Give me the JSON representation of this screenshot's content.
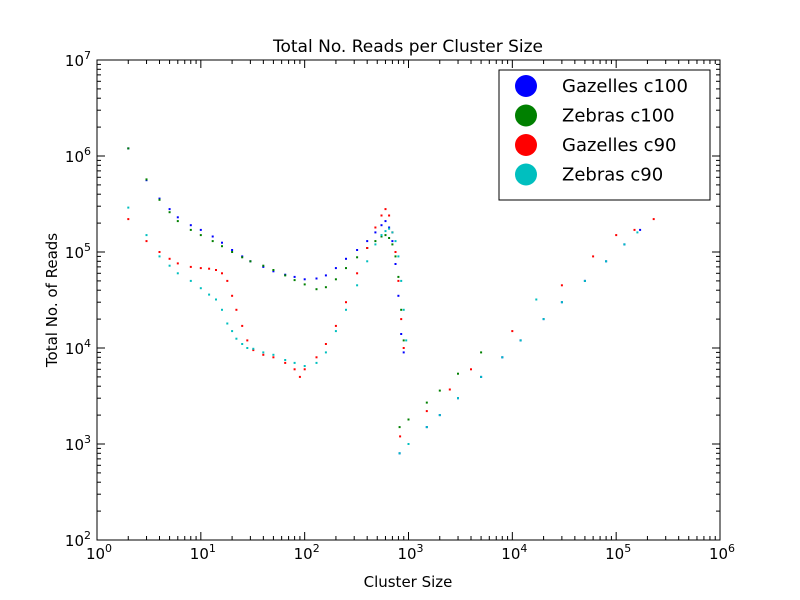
{
  "chart_data": {
    "type": "scatter",
    "title": "Total No. Reads per Cluster Size",
    "xlabel": "Cluster Size",
    "ylabel": "Total No. of Reads",
    "xscale": "log",
    "yscale": "log",
    "xlim": [
      1,
      1000000
    ],
    "ylim": [
      100,
      10000000
    ],
    "legend_position": "top-right",
    "grid": false,
    "x_ticks": [
      {
        "base": "10",
        "exp": "0",
        "value": 1
      },
      {
        "base": "10",
        "exp": "1",
        "value": 10
      },
      {
        "base": "10",
        "exp": "2",
        "value": 100
      },
      {
        "base": "10",
        "exp": "3",
        "value": 1000
      },
      {
        "base": "10",
        "exp": "4",
        "value": 10000
      },
      {
        "base": "10",
        "exp": "5",
        "value": 100000
      },
      {
        "base": "10",
        "exp": "6",
        "value": 1000000
      }
    ],
    "y_ticks": [
      {
        "base": "10",
        "exp": "2",
        "value": 100
      },
      {
        "base": "10",
        "exp": "3",
        "value": 1000
      },
      {
        "base": "10",
        "exp": "4",
        "value": 10000
      },
      {
        "base": "10",
        "exp": "5",
        "value": 100000
      },
      {
        "base": "10",
        "exp": "6",
        "value": 1000000
      },
      {
        "base": "10",
        "exp": "7",
        "value": 10000000
      }
    ],
    "series": [
      {
        "name": "Gazelles c100",
        "color": "#0000ff",
        "points": [
          [
            2,
            1200000
          ],
          [
            3,
            560000
          ],
          [
            4,
            360000
          ],
          [
            5,
            280000
          ],
          [
            6,
            230000
          ],
          [
            8,
            190000
          ],
          [
            10,
            170000
          ],
          [
            13,
            145000
          ],
          [
            16,
            125000
          ],
          [
            20,
            105000
          ],
          [
            25,
            90000
          ],
          [
            30,
            80000
          ],
          [
            40,
            70000
          ],
          [
            50,
            63000
          ],
          [
            65,
            58000
          ],
          [
            80,
            55000
          ],
          [
            100,
            52000
          ],
          [
            130,
            53000
          ],
          [
            160,
            57000
          ],
          [
            200,
            68000
          ],
          [
            250,
            85000
          ],
          [
            320,
            105000
          ],
          [
            400,
            130000
          ],
          [
            480,
            160000
          ],
          [
            550,
            190000
          ],
          [
            600,
            210000
          ],
          [
            650,
            180000
          ],
          [
            700,
            130000
          ],
          [
            750,
            75000
          ],
          [
            800,
            35000
          ],
          [
            850,
            14000
          ],
          [
            900,
            9000
          ],
          [
            820,
            800
          ],
          [
            1000,
            1000
          ],
          [
            1500,
            1500
          ],
          [
            2000,
            2000
          ],
          [
            3000,
            3000
          ],
          [
            5000,
            5000
          ],
          [
            8000,
            8000
          ],
          [
            12000,
            12000
          ],
          [
            20000,
            20000
          ],
          [
            30000,
            30000
          ],
          [
            50000,
            50000
          ],
          [
            80000,
            80000
          ],
          [
            120000,
            120000
          ],
          [
            170000,
            170000
          ]
        ]
      },
      {
        "name": "Zebras c100",
        "color": "#008000",
        "points": [
          [
            2,
            1200000
          ],
          [
            3,
            570000
          ],
          [
            4,
            350000
          ],
          [
            5,
            260000
          ],
          [
            6,
            210000
          ],
          [
            8,
            170000
          ],
          [
            10,
            150000
          ],
          [
            13,
            130000
          ],
          [
            16,
            115000
          ],
          [
            20,
            100000
          ],
          [
            25,
            88000
          ],
          [
            30,
            80000
          ],
          [
            40,
            72000
          ],
          [
            50,
            65000
          ],
          [
            65,
            57000
          ],
          [
            80,
            51000
          ],
          [
            100,
            46000
          ],
          [
            130,
            41000
          ],
          [
            160,
            43000
          ],
          [
            200,
            52000
          ],
          [
            250,
            68000
          ],
          [
            320,
            88000
          ],
          [
            400,
            110000
          ],
          [
            480,
            130000
          ],
          [
            550,
            145000
          ],
          [
            600,
            150000
          ],
          [
            650,
            140000
          ],
          [
            700,
            120000
          ],
          [
            750,
            90000
          ],
          [
            800,
            55000
          ],
          [
            850,
            25000
          ],
          [
            900,
            12000
          ],
          [
            820,
            1500
          ],
          [
            1000,
            1800
          ],
          [
            1500,
            2700
          ],
          [
            2000,
            3600
          ],
          [
            3000,
            5400
          ],
          [
            5000,
            9000
          ]
        ]
      },
      {
        "name": "Gazelles c90",
        "color": "#ff0000",
        "points": [
          [
            2,
            220000
          ],
          [
            3,
            130000
          ],
          [
            4,
            100000
          ],
          [
            5,
            85000
          ],
          [
            6,
            76000
          ],
          [
            8,
            70000
          ],
          [
            10,
            68000
          ],
          [
            12,
            67000
          ],
          [
            14,
            65000
          ],
          [
            16,
            60000
          ],
          [
            18,
            50000
          ],
          [
            20,
            35000
          ],
          [
            22,
            25000
          ],
          [
            25,
            17000
          ],
          [
            28,
            12000
          ],
          [
            32,
            9500
          ],
          [
            40,
            8500
          ],
          [
            50,
            8000
          ],
          [
            65,
            7000
          ],
          [
            80,
            6000
          ],
          [
            90,
            5000
          ],
          [
            100,
            6000
          ],
          [
            130,
            8000
          ],
          [
            160,
            11000
          ],
          [
            200,
            17000
          ],
          [
            250,
            30000
          ],
          [
            320,
            60000
          ],
          [
            400,
            110000
          ],
          [
            480,
            180000
          ],
          [
            550,
            240000
          ],
          [
            600,
            280000
          ],
          [
            650,
            240000
          ],
          [
            700,
            160000
          ],
          [
            750,
            100000
          ],
          [
            800,
            50000
          ],
          [
            850,
            20000
          ],
          [
            900,
            10000
          ],
          [
            830,
            1200
          ],
          [
            1500,
            2200
          ],
          [
            2500,
            3700
          ],
          [
            4000,
            6000
          ],
          [
            10000,
            15000
          ],
          [
            30000,
            45000
          ],
          [
            60000,
            90000
          ],
          [
            100000,
            150000
          ],
          [
            150000,
            170000
          ],
          [
            230000,
            220000
          ]
        ]
      },
      {
        "name": "Zebras c90",
        "color": "#00bfbf",
        "points": [
          [
            2,
            290000
          ],
          [
            3,
            150000
          ],
          [
            4,
            90000
          ],
          [
            5,
            72000
          ],
          [
            6,
            60000
          ],
          [
            8,
            50000
          ],
          [
            10,
            42000
          ],
          [
            12,
            36000
          ],
          [
            14,
            32000
          ],
          [
            16,
            25000
          ],
          [
            18,
            18000
          ],
          [
            20,
            15000
          ],
          [
            22,
            12500
          ],
          [
            25,
            11000
          ],
          [
            28,
            10000
          ],
          [
            32,
            9800
          ],
          [
            40,
            9000
          ],
          [
            50,
            8500
          ],
          [
            65,
            7500
          ],
          [
            80,
            7000
          ],
          [
            100,
            6500
          ],
          [
            130,
            7000
          ],
          [
            160,
            9000
          ],
          [
            200,
            15000
          ],
          [
            250,
            25000
          ],
          [
            320,
            45000
          ],
          [
            400,
            80000
          ],
          [
            480,
            120000
          ],
          [
            550,
            150000
          ],
          [
            600,
            165000
          ],
          [
            650,
            175000
          ],
          [
            700,
            160000
          ],
          [
            750,
            130000
          ],
          [
            800,
            90000
          ],
          [
            850,
            50000
          ],
          [
            900,
            25000
          ],
          [
            950,
            12000
          ],
          [
            820,
            800
          ],
          [
            1000,
            1000
          ],
          [
            1500,
            1500
          ],
          [
            2000,
            2000
          ],
          [
            3000,
            3000
          ],
          [
            5000,
            5000
          ],
          [
            8000,
            8000
          ],
          [
            12000,
            12000
          ],
          [
            17000,
            32000
          ],
          [
            20000,
            20000
          ],
          [
            30000,
            30000
          ],
          [
            50000,
            50000
          ],
          [
            80000,
            80000
          ],
          [
            120000,
            120000
          ],
          [
            160000,
            160000
          ]
        ]
      }
    ]
  }
}
